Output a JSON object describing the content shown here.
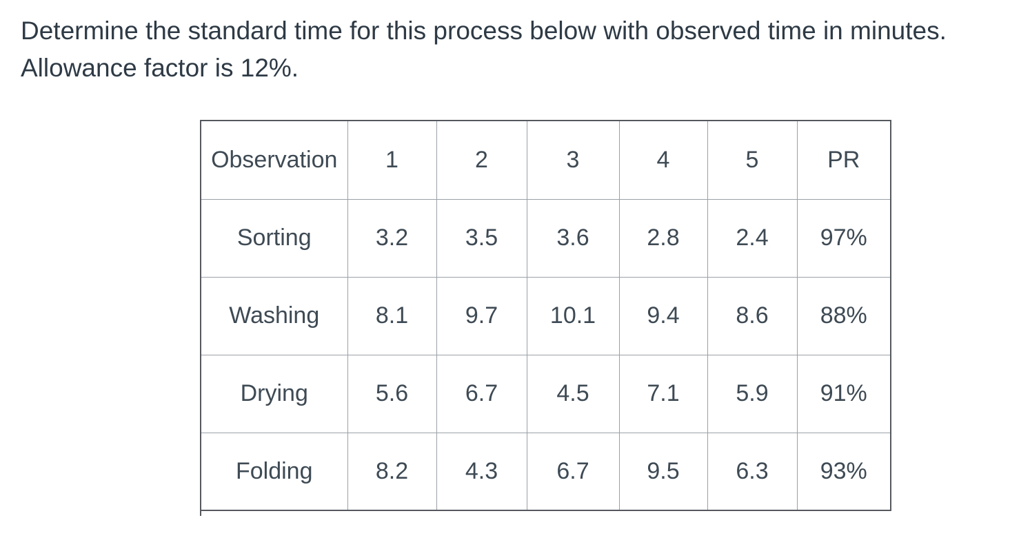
{
  "question": {
    "line1": "Determine the standard time for this process below with observed time in minutes.",
    "line2": "Allowance factor is 12%."
  },
  "colors": {
    "text": "#2e3a45",
    "table_text": "#3e4a54",
    "outer_border": "#55595e",
    "inner_border": "#9aa0a6",
    "background": "#ffffff"
  },
  "table": {
    "headers": [
      "Observation",
      "1",
      "2",
      "3",
      "4",
      "5",
      "PR"
    ],
    "rows": [
      {
        "process": "Sorting",
        "values": [
          "3.2",
          "3.5",
          "3.6",
          "2.8",
          "2.4",
          "97%"
        ]
      },
      {
        "process": "Washing",
        "values": [
          "8.1",
          "9.7",
          "10.1",
          "9.4",
          "8.6",
          "88%"
        ]
      },
      {
        "process": "Drying",
        "values": [
          "5.6",
          "6.7",
          "4.5",
          "7.1",
          "5.9",
          "91%"
        ]
      },
      {
        "process": "Folding",
        "values": [
          "8.2",
          "4.3",
          "6.7",
          "9.5",
          "6.3",
          "93%"
        ]
      }
    ]
  }
}
